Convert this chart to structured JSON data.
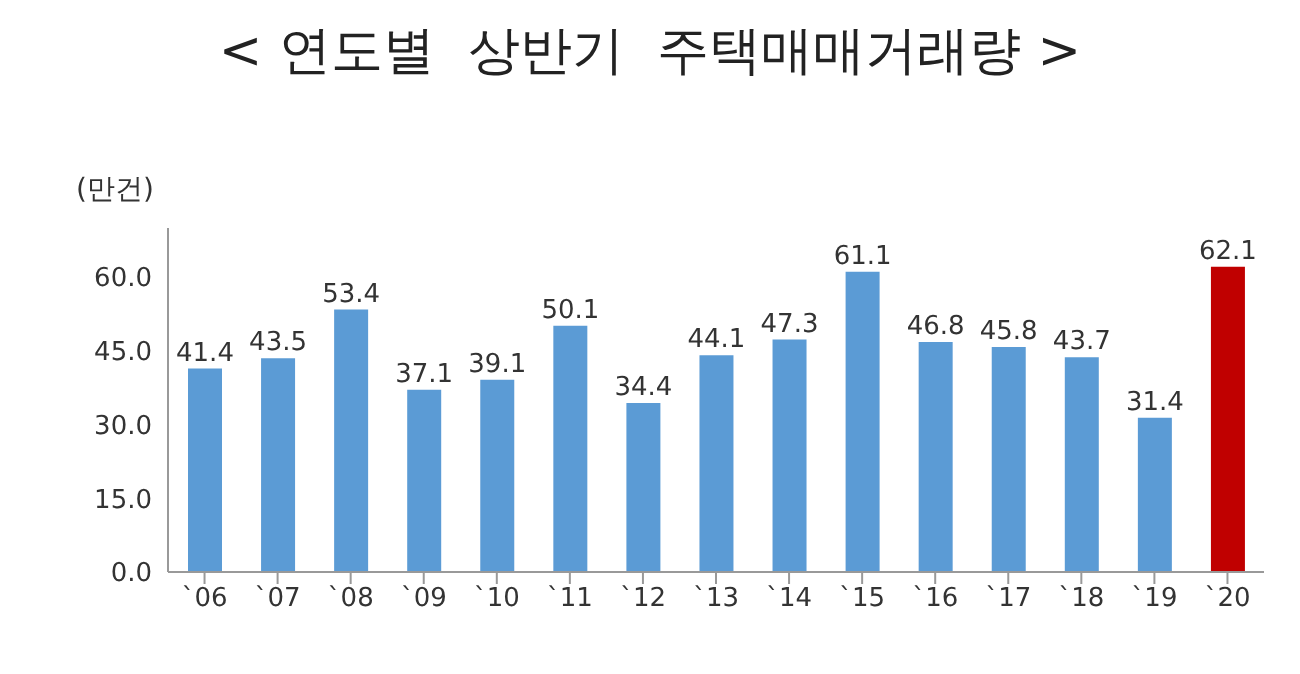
{
  "chart_data": {
    "type": "bar",
    "title": "< 연도별  상반기  주택매매거래량 >",
    "ylabel": "(만건)",
    "categories": [
      "`06",
      "`07",
      "`08",
      "`09",
      "`10",
      "`11",
      "`12",
      "`13",
      "`14",
      "`15",
      "`16",
      "`17",
      "`18",
      "`19",
      "`20"
    ],
    "values": [
      41.4,
      43.5,
      53.4,
      37.1,
      39.1,
      50.1,
      34.4,
      44.1,
      47.3,
      61.1,
      46.8,
      45.8,
      43.7,
      31.4,
      62.1
    ],
    "colors": [
      "#5b9bd5",
      "#5b9bd5",
      "#5b9bd5",
      "#5b9bd5",
      "#5b9bd5",
      "#5b9bd5",
      "#5b9bd5",
      "#5b9bd5",
      "#5b9bd5",
      "#5b9bd5",
      "#5b9bd5",
      "#5b9bd5",
      "#5b9bd5",
      "#5b9bd5",
      "#c00000"
    ],
    "ylim": [
      0,
      70
    ],
    "yticks": [
      {
        "value": 0,
        "label": "0.0"
      },
      {
        "value": 15,
        "label": "15.0"
      },
      {
        "value": 30,
        "label": "30.0"
      },
      {
        "value": 45,
        "label": "45.0"
      },
      {
        "value": 60,
        "label": "60.0"
      }
    ],
    "data_labels": true,
    "grid": false
  }
}
